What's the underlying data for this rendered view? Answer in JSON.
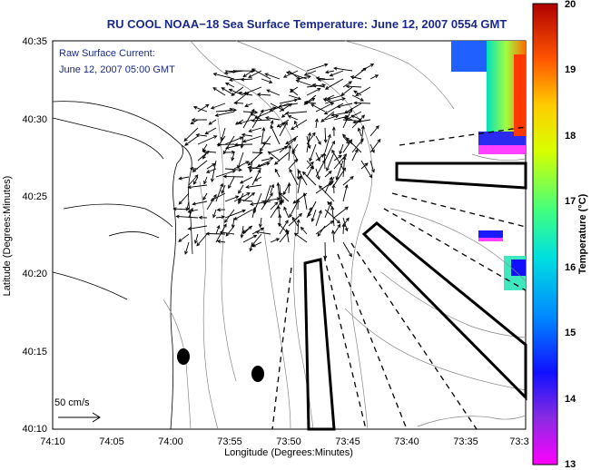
{
  "title": "RU COOL   NOAA−18  Sea Surface Temperature:  June 12, 2007 0554 GMT",
  "legend_line1": "Raw Surface Current:",
  "legend_line2": "June 12, 2007 05:00 GMT",
  "scale_label": "50 cm/s",
  "xlabel": "Longitude (Degrees:Minutes)",
  "ylabel": "Latitude (Degrees:Minutes)",
  "xticks": [
    "74:10",
    "74:05",
    "74:00",
    "73:55",
    "73:50",
    "73:45",
    "73:40",
    "73:35",
    "73:3"
  ],
  "yticks": [
    "40:35",
    "40:30",
    "40:25",
    "40:20",
    "40:15",
    "40:10"
  ],
  "colorbar": {
    "label": "Temperature (°C)",
    "ticks": [
      "20",
      "19",
      "18",
      "17",
      "16",
      "15",
      "14",
      "13"
    ],
    "range": [
      13,
      20
    ]
  },
  "colors": {
    "title": "#1b2a8a",
    "legend_text": "#1b2a8a"
  }
}
